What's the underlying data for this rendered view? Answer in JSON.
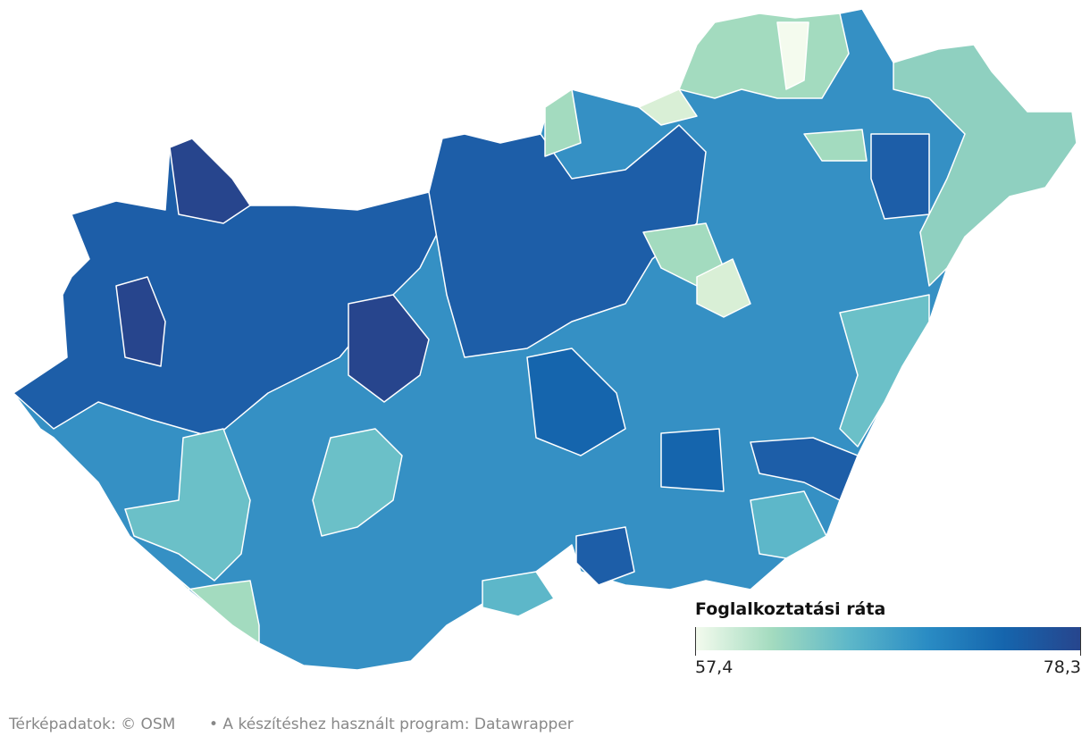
{
  "map": {
    "legend": {
      "title": "Foglalkoztatási ráta",
      "min": {
        "value": 57.4,
        "label": "57,4"
      },
      "max": {
        "value": 78.3,
        "label": "78,3"
      },
      "colors": [
        "#f4fbee",
        "#a3dbbf",
        "#5db7c9",
        "#2a8cc4",
        "#1565ad",
        "#27458d"
      ]
    },
    "footer": [
      "Térképadatok: © OSM",
      "• A készítéshez használt program: Datawrapper"
    ]
  }
}
